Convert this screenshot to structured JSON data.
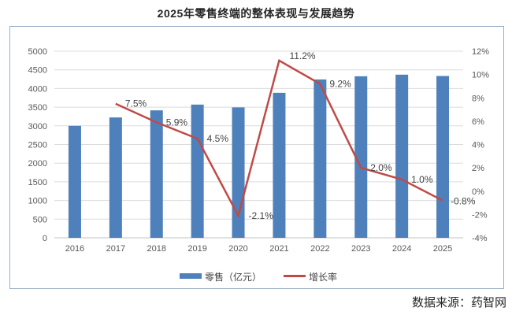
{
  "title": "2025年零售终端的整体表现与发展趋势",
  "source_note": "数据来源：药智网",
  "colors": {
    "bar": "#4E81BC",
    "line": "#BE4B48",
    "grid": "#DCDCDC",
    "axis_zero_line": "#C6C6C6",
    "axis_text": "#595959",
    "data_label": "#444444",
    "legend_text": "#404040",
    "frame_border": "#9AAEC4",
    "title_text": "#262626"
  },
  "legend": {
    "position": "bottom-center",
    "items": [
      {
        "label": "零售（亿元）",
        "marker": "bar-swatch"
      },
      {
        "label": "增长率",
        "marker": "line-swatch"
      }
    ]
  },
  "chart_data": {
    "type": "bar+line",
    "title": "2025年零售终端的整体表现与发展趋势",
    "categories": [
      "2016",
      "2017",
      "2018",
      "2019",
      "2020",
      "2021",
      "2022",
      "2023",
      "2024",
      "2025"
    ],
    "series": [
      {
        "name": "零售（亿元）",
        "type": "bar",
        "axis": "left",
        "values": [
          3000,
          3225,
          3415,
          3569,
          3494,
          3885,
          4243,
          4328,
          4371,
          4336
        ]
      },
      {
        "name": "增长率",
        "type": "line",
        "axis": "right",
        "values": [
          null,
          7.5,
          5.9,
          4.5,
          -2.1,
          11.2,
          9.2,
          2.0,
          1.0,
          -0.8
        ],
        "point_labels": [
          null,
          "7.5%",
          "5.9%",
          "4.5%",
          "-2.1%",
          "11.2%",
          "9.2%",
          "2.0%",
          "1.0%",
          "-0.8%"
        ]
      }
    ],
    "left_axis": {
      "min": 0,
      "max": 5000,
      "step": 500,
      "ticks": [
        "0",
        "500",
        "1000",
        "1500",
        "2000",
        "2500",
        "3000",
        "3500",
        "4000",
        "4500",
        "5000"
      ]
    },
    "right_axis": {
      "min": -4,
      "max": 12,
      "step": 2,
      "ticks": [
        "-4%",
        "-2%",
        "0%",
        "2%",
        "4%",
        "6%",
        "8%",
        "10%",
        "12%"
      ]
    },
    "grid": true,
    "legend_position": "bottom"
  }
}
